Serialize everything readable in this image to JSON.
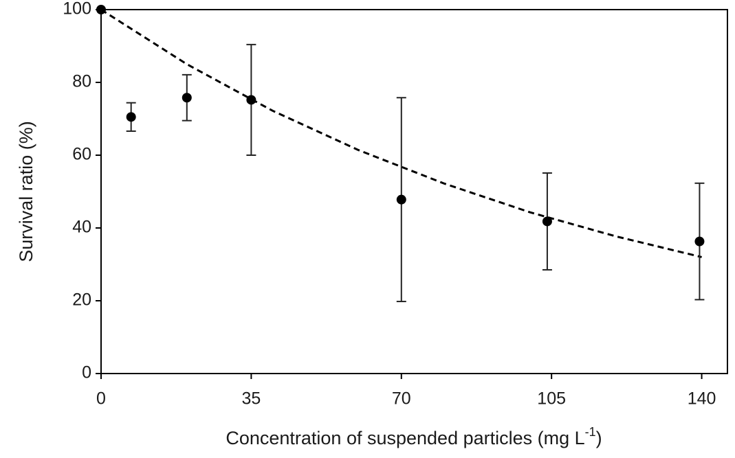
{
  "chart_data": {
    "type": "scatter",
    "x_label": {
      "text": "Concentration of suspended particles (mg L",
      "superscript": "-1",
      "suffix": ")"
    },
    "y_label": "Survival ratio (%)",
    "xlim": [
      0,
      146
    ],
    "xticks": [
      0,
      35,
      70,
      105,
      140
    ],
    "ylim": [
      0,
      100
    ],
    "yticks": [
      0,
      20,
      40,
      60,
      80,
      100
    ],
    "series": [
      {
        "type": "scatter",
        "color": "#000000",
        "x": [
          0,
          7,
          20,
          35,
          70,
          104,
          139.5
        ],
        "values": [
          100,
          70.5,
          75.8,
          75.2,
          47.8,
          41.8,
          36.3
        ],
        "errors": [
          null,
          3.9,
          6.3,
          15.2,
          28,
          13.3,
          16
        ]
      },
      {
        "type": "line",
        "color": "#000000",
        "dashed": true,
        "x": [
          0,
          20,
          40,
          60,
          80,
          100,
          120,
          140
        ],
        "values": [
          100,
          85.0,
          72.2,
          61.4,
          52.2,
          44.3,
          37.7,
          32.0
        ]
      }
    ]
  }
}
